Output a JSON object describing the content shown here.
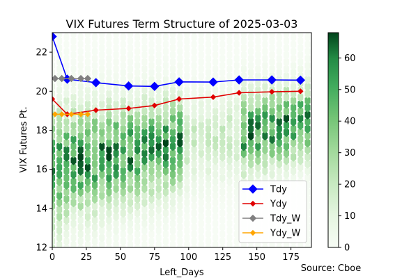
{
  "chart_data": {
    "type": "line",
    "title": "VIX Futures Term Structure of 2025-03-03",
    "xlabel": "Left_Days",
    "ylabel": "VIX Futures Pt.",
    "xlim": [
      0,
      190
    ],
    "ylim": [
      12,
      23
    ],
    "x_ticks": [
      0,
      25,
      50,
      75,
      100,
      125,
      150,
      175
    ],
    "y_ticks": [
      12,
      14,
      16,
      18,
      20,
      22
    ],
    "legend_position": "lower-right",
    "source_text": "Source: Cboe",
    "colorbar": {
      "colormap": "Greens",
      "range": [
        0,
        68
      ],
      "ticks": [
        0,
        10,
        20,
        30,
        40,
        50,
        60
      ]
    },
    "background": "hexbin density of historical VIX futures points",
    "series": [
      {
        "name": "Tdy",
        "color": "#0000ff",
        "marker": "diamond",
        "x": [
          0,
          11,
          32,
          56,
          75,
          93,
          118,
          137,
          161,
          182
        ],
        "y": [
          22.8,
          20.62,
          20.44,
          20.27,
          20.25,
          20.48,
          20.47,
          20.58,
          20.58,
          20.57
        ]
      },
      {
        "name": "Ydy",
        "color": "#e00000",
        "marker": "diamond",
        "x": [
          0,
          11,
          32,
          56,
          75,
          93,
          118,
          137,
          161,
          182
        ],
        "y": [
          19.6,
          18.82,
          19.03,
          19.12,
          19.27,
          19.6,
          19.7,
          19.92,
          19.97,
          20.0
        ]
      },
      {
        "name": "Tdy_W",
        "color": "#808080",
        "marker": "diamond",
        "x": [
          2,
          7,
          14,
          21,
          26
        ],
        "y": [
          20.65,
          20.65,
          20.65,
          20.65,
          20.65
        ]
      },
      {
        "name": "Ydy_W",
        "color": "#ffa500",
        "marker": "diamond",
        "x": [
          2,
          7,
          14,
          21,
          26
        ],
        "y": [
          18.82,
          18.82,
          18.82,
          18.82,
          18.82
        ]
      }
    ]
  }
}
